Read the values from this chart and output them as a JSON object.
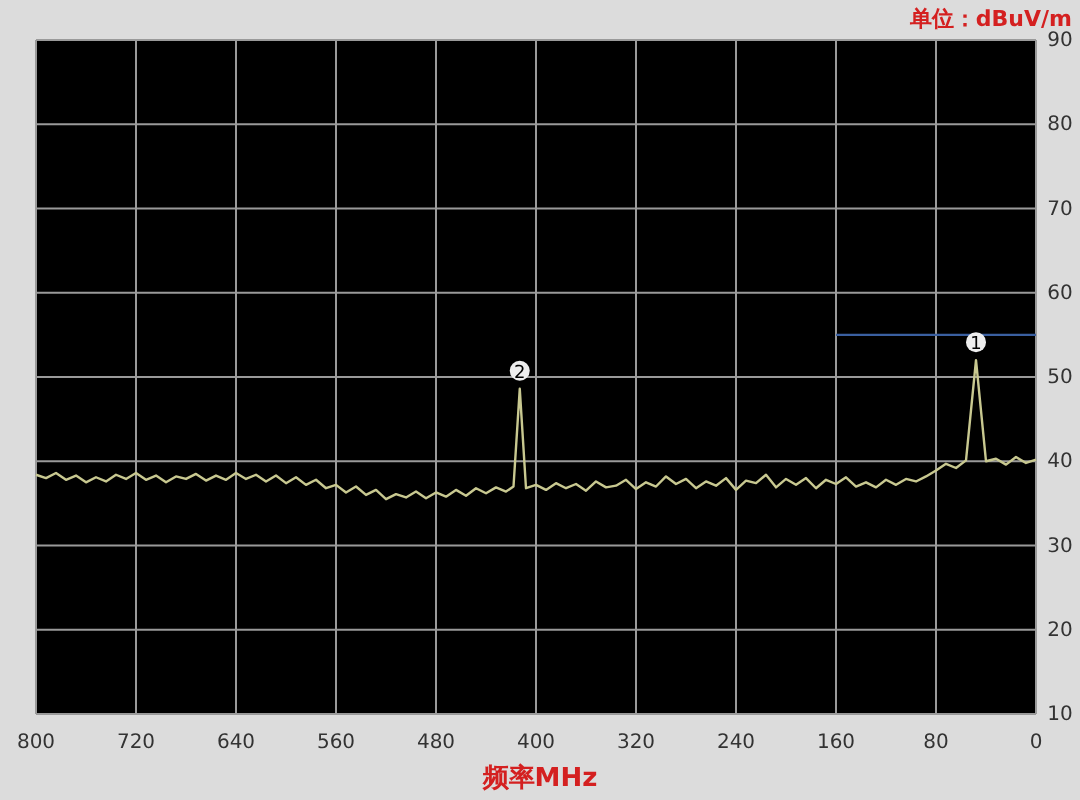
{
  "chart_data": {
    "type": "line",
    "xlabel": "频率MHz",
    "ylabel": "单位：dBuV/m",
    "xlim": [
      800,
      0
    ],
    "ylim": [
      10,
      90
    ],
    "xticks": [
      0,
      80,
      160,
      240,
      320,
      400,
      480,
      560,
      640,
      720,
      800
    ],
    "yticks": [
      10,
      20,
      30,
      40,
      50,
      60,
      70,
      80,
      90
    ],
    "grid": true,
    "series": [
      {
        "color": "#c8c890",
        "x": [
          0,
          8,
          16,
          24,
          32,
          40,
          48,
          56,
          64,
          72,
          80,
          88,
          96,
          104,
          112,
          120,
          128,
          136,
          144,
          152,
          160,
          168,
          176,
          184,
          192,
          200,
          208,
          216,
          224,
          232,
          240,
          248,
          256,
          264,
          272,
          280,
          288,
          296,
          304,
          312,
          320,
          328,
          336,
          344,
          352,
          360,
          368,
          376,
          384,
          392,
          400,
          408,
          413,
          418,
          424,
          432,
          440,
          448,
          456,
          464,
          472,
          480,
          488,
          496,
          504,
          512,
          520,
          528,
          536,
          544,
          552,
          560,
          568,
          576,
          584,
          592,
          600,
          608,
          616,
          624,
          632,
          640,
          648,
          656,
          664,
          672,
          680,
          688,
          696,
          704,
          712,
          720,
          728,
          736,
          744,
          752,
          760,
          768,
          776,
          784,
          792,
          800
        ],
        "values": [
          40.2,
          39.8,
          40.5,
          39.6,
          40.3,
          40.0,
          52.0,
          40.1,
          39.2,
          39.7,
          38.9,
          38.2,
          37.6,
          37.9,
          37.2,
          37.8,
          36.9,
          37.5,
          37.0,
          38.1,
          37.3,
          37.8,
          36.8,
          38.0,
          37.2,
          37.9,
          36.9,
          38.4,
          37.4,
          37.7,
          36.6,
          38.0,
          37.1,
          37.6,
          36.8,
          37.9,
          37.3,
          38.2,
          37.0,
          37.5,
          36.7,
          37.8,
          37.1,
          36.9,
          37.6,
          36.5,
          37.3,
          36.8,
          37.4,
          36.6,
          37.2,
          36.8,
          48.6,
          37.0,
          36.4,
          36.9,
          36.2,
          36.8,
          35.9,
          36.6,
          35.8,
          36.3,
          35.6,
          36.4,
          35.7,
          36.1,
          35.5,
          36.6,
          36.0,
          37.0,
          36.3,
          37.2,
          36.8,
          37.8,
          37.2,
          38.1,
          37.4,
          38.3,
          37.6,
          38.4,
          37.9,
          38.6,
          37.8,
          38.3,
          37.7,
          38.5,
          37.9,
          38.2,
          37.5,
          38.3,
          37.8,
          38.6,
          37.9,
          38.4,
          37.6,
          38.1,
          37.5,
          38.3,
          37.8,
          38.6,
          38.0,
          38.4
        ]
      },
      {
        "color": "#3a5fa0",
        "x": [
          0,
          160
        ],
        "values": [
          55,
          55
        ]
      }
    ],
    "annotations": [
      {
        "text": "1",
        "x": 48,
        "y": 52
      },
      {
        "text": "2",
        "x": 413,
        "y": 48.6
      }
    ]
  }
}
